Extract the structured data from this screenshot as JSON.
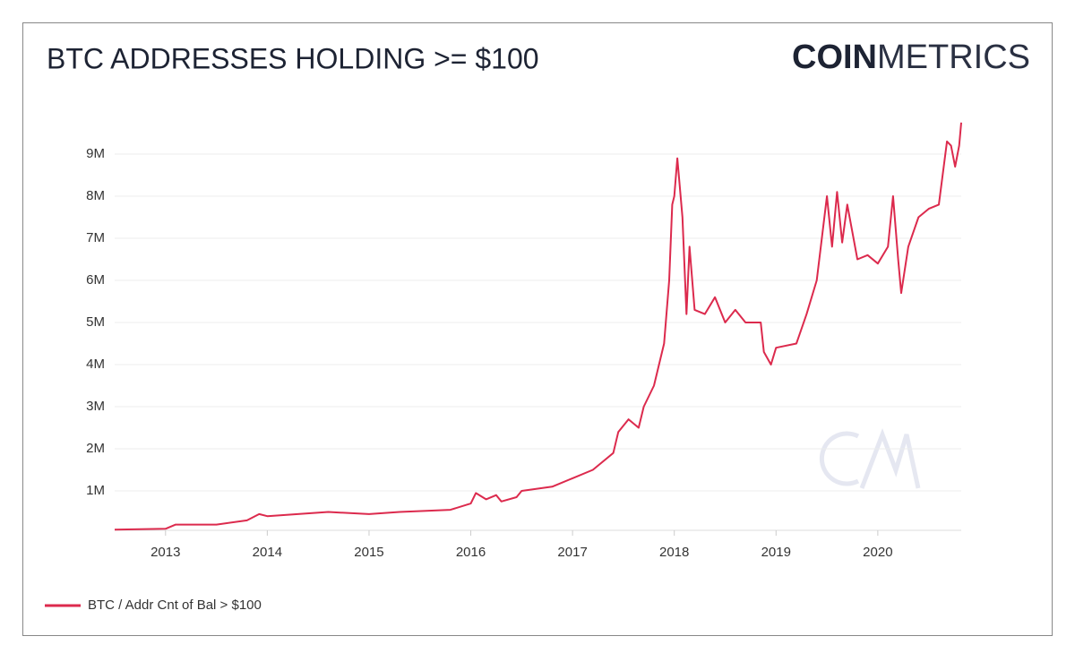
{
  "chart_data": {
    "type": "line",
    "title": "BTC ADDRESSES HOLDING >= $100",
    "logo": {
      "bold": "COIN",
      "light": "METRICS"
    },
    "x": [
      2012.5,
      2013.0,
      2013.1,
      2013.5,
      2013.8,
      2013.92,
      2014.0,
      2014.3,
      2014.6,
      2015.0,
      2015.3,
      2015.8,
      2016.0,
      2016.05,
      2016.15,
      2016.25,
      2016.3,
      2016.45,
      2016.5,
      2016.8,
      2017.0,
      2017.2,
      2017.4,
      2017.45,
      2017.55,
      2017.65,
      2017.7,
      2017.8,
      2017.9,
      2017.95,
      2017.98,
      2018.0,
      2018.03,
      2018.08,
      2018.12,
      2018.15,
      2018.2,
      2018.3,
      2018.4,
      2018.5,
      2018.6,
      2018.7,
      2018.85,
      2018.88,
      2018.95,
      2019.0,
      2019.2,
      2019.3,
      2019.4,
      2019.5,
      2019.55,
      2019.6,
      2019.65,
      2019.7,
      2019.8,
      2019.9,
      2020.0,
      2020.1,
      2020.15,
      2020.2,
      2020.23,
      2020.3,
      2020.4,
      2020.5,
      2020.6,
      2020.68,
      2020.72,
      2020.76,
      2020.8,
      2020.82
    ],
    "series": [
      {
        "name": "BTC / Addr Cnt of Bal > $100",
        "color": "#dc2a4d",
        "values": [
          80000,
          100000,
          200000,
          200000,
          300000,
          450000,
          400000,
          450000,
          500000,
          450000,
          500000,
          550000,
          700000,
          950000,
          800000,
          900000,
          750000,
          850000,
          1000000,
          1100000,
          1300000,
          1500000,
          1900000,
          2400000,
          2700000,
          2500000,
          3000000,
          3500000,
          4500000,
          6000000,
          7800000,
          8000000,
          8900000,
          7500000,
          5200000,
          6800000,
          5300000,
          5200000,
          5600000,
          5000000,
          5300000,
          5000000,
          5000000,
          4300000,
          4000000,
          4400000,
          4500000,
          5200000,
          6000000,
          8000000,
          6800000,
          8100000,
          6900000,
          7800000,
          6500000,
          6600000,
          6400000,
          6800000,
          8000000,
          6500000,
          5700000,
          6800000,
          7500000,
          7700000,
          7800000,
          9300000,
          9200000,
          8700000,
          9200000,
          9750000
        ]
      }
    ],
    "xlim": [
      2012.5,
      2020.82
    ],
    "xticks": [
      2013,
      2014,
      2015,
      2016,
      2017,
      2018,
      2019,
      2020
    ],
    "ylim": [
      0,
      10000000
    ],
    "yticks": [
      {
        "value": 1000000,
        "label": "1M"
      },
      {
        "value": 2000000,
        "label": "2M"
      },
      {
        "value": 3000000,
        "label": "3M"
      },
      {
        "value": 4000000,
        "label": "4M"
      },
      {
        "value": 5000000,
        "label": "5M"
      },
      {
        "value": 6000000,
        "label": "6M"
      },
      {
        "value": 7000000,
        "label": "7M"
      },
      {
        "value": 8000000,
        "label": "8M"
      },
      {
        "value": 9000000,
        "label": "9M"
      }
    ],
    "grid": true,
    "legend": "bottom-left"
  }
}
